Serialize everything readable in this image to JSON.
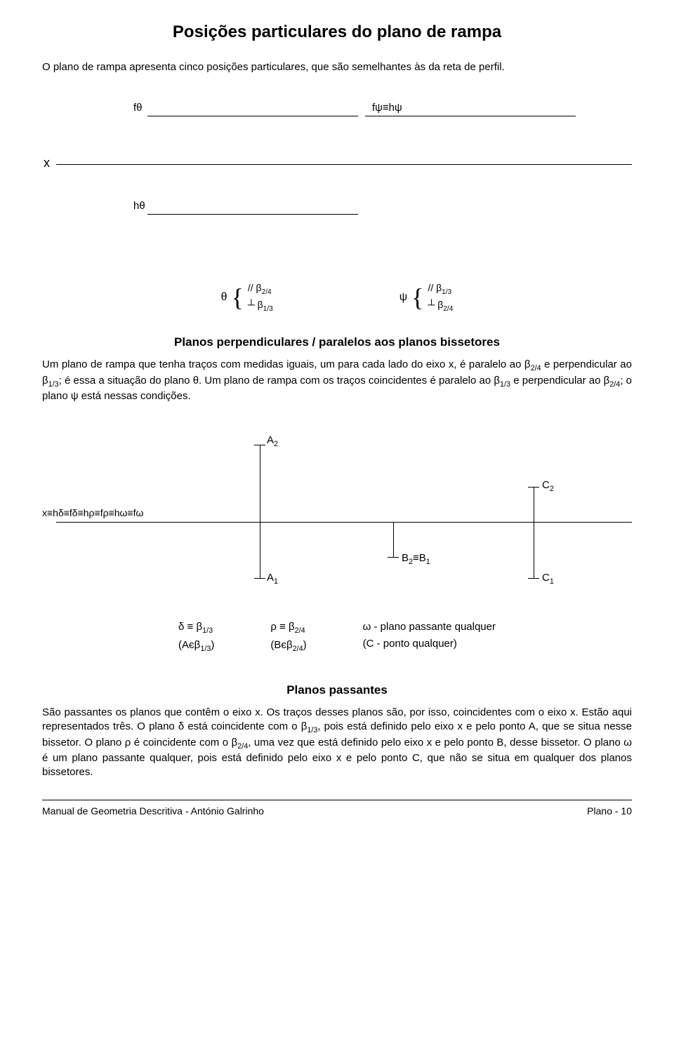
{
  "title": "Posições particulares do plano de rampa",
  "intro": "O plano de rampa apresenta cinco posições particulares, que são semelhantes às da reta de perfil.",
  "diagram1": {
    "ftheta": "fθ",
    "fpsi": "fψ≡hψ",
    "x": "x",
    "htheta": "hθ",
    "theta_name": "θ",
    "theta_line1": "// β<sub>2/4</sub>",
    "theta_line2": "┴ β<sub>1/3</sub>",
    "psi_name": "ψ",
    "psi_line1": "// β<sub>1/3</sub>",
    "psi_line2": "┴ β<sub>2/4</sub>"
  },
  "section1": {
    "subtitle": "Planos perpendiculares / paralelos aos planos bissetores",
    "body": "Um plano de rampa que tenha traços com medidas iguais, um para cada lado do eixo x, é paralelo ao β<sub>2/4</sub> e perpendicular ao β<sub>1/3</sub>; é essa a situação do plano θ. Um plano de rampa com os traços coincidentes é paralelo ao β<sub>1/3</sub> e perpendicular ao β<sub>2/4</sub>; o plano ψ está nessas condições."
  },
  "diagram2": {
    "A2": "A<sub>2</sub>",
    "C2": "C<sub>2</sub>",
    "A1": "A<sub>1</sub>",
    "B": "B<sub>2</sub>≡B<sub>1</sub>",
    "C1": "C<sub>1</sub>",
    "xlabel": "x≡hδ≡fδ≡hρ≡fρ≡hω≡fω"
  },
  "legend": {
    "delta1": "δ ≡ β<sub>1/3</sub>",
    "delta2": "(Aєβ<sub>1/3</sub>)",
    "rho1": "ρ ≡ β<sub>2/4</sub>",
    "rho2": "(Bєβ<sub>2/4</sub>)",
    "omega1": "ω - plano passante qualquer",
    "omega2": "(C - ponto qualquer)"
  },
  "section2": {
    "subtitle": "Planos passantes",
    "body": "São passantes os planos que contêm o eixo x. Os traços desses planos são, por isso, coincidentes com o eixo x. Estão aqui representados três. O plano δ está coincidente com o β<sub>1/3</sub>, pois está definido pelo eixo x e pelo ponto A, que se situa nesse bissetor. O plano ρ é coincidente com o β<sub>2/4</sub>, uma vez que está definido pelo eixo x e pelo ponto B, desse bissetor. O plano ω é um plano passante qualquer, pois está definido pelo eixo x e pelo ponto C, que não se situa em qualquer dos planos bissetores."
  },
  "footer": {
    "left": "Manual de Geometria Descritiva - António Galrinho",
    "right": "Plano - 10"
  }
}
